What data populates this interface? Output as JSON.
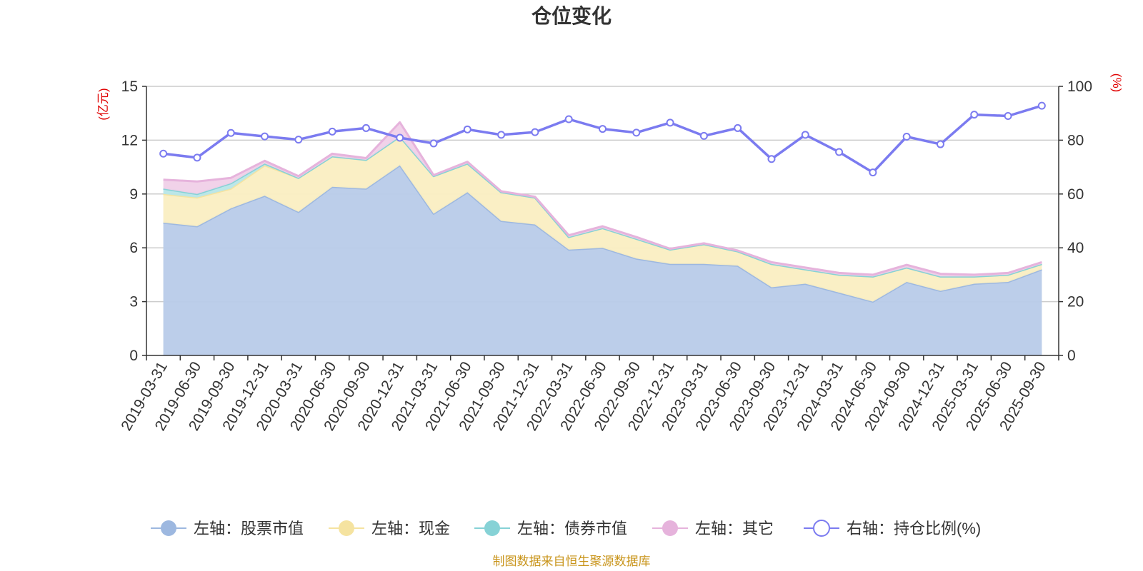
{
  "colors": {
    "stock": "#9db8e0",
    "stock_fill": "#b8cbe9",
    "cash": "#f5e3a0",
    "cash_fill": "#faeec2",
    "bond": "#86d2d6",
    "bond_fill": "#b8e6e8",
    "other": "#e6b3dc",
    "other_fill": "#f0d0e8",
    "ratio": "#7b7bf0",
    "unit": "#e00000",
    "source": "#c9951c",
    "grid": "#cccccc"
  },
  "chart_data": {
    "type": "area",
    "title": "仓位变化",
    "left_unit": "(亿元)",
    "right_unit": "(%)",
    "categories": [
      "2019-03-31",
      "2019-06-30",
      "2019-09-30",
      "2019-12-31",
      "2020-03-31",
      "2020-06-30",
      "2020-09-30",
      "2020-12-31",
      "2021-03-31",
      "2021-06-30",
      "2021-09-30",
      "2021-12-31",
      "2022-03-31",
      "2022-06-30",
      "2022-09-30",
      "2022-12-31",
      "2023-03-31",
      "2023-06-30",
      "2023-09-30",
      "2023-12-31",
      "2024-03-31",
      "2024-06-30",
      "2024-09-30",
      "2024-12-31",
      "2025-03-31",
      "2025-06-30",
      "2025-09-30"
    ],
    "left_axis": {
      "min": 0,
      "max": 15,
      "ticks": [
        "0",
        "3",
        "6",
        "9",
        "12",
        "15"
      ]
    },
    "right_axis": {
      "min": 0,
      "max": 100,
      "ticks": [
        "0",
        "20",
        "40",
        "60",
        "80",
        "100"
      ]
    },
    "series": [
      {
        "name": "左轴：股票市值",
        "key": "stock",
        "axis": "left",
        "stack": true,
        "values": [
          7.4,
          7.2,
          8.2,
          8.9,
          8.0,
          9.4,
          9.3,
          10.6,
          7.9,
          9.1,
          7.5,
          7.3,
          5.9,
          6.0,
          5.4,
          5.1,
          5.1,
          5.0,
          3.8,
          4.0,
          3.5,
          3.0,
          4.1,
          3.6,
          4.0,
          4.1,
          4.8
        ]
      },
      {
        "name": "左轴：现金",
        "key": "cash",
        "axis": "left",
        "stack": true,
        "values": [
          1.6,
          1.6,
          1.1,
          1.7,
          1.9,
          1.7,
          1.6,
          1.6,
          2.1,
          1.6,
          1.6,
          1.5,
          0.7,
          1.1,
          1.1,
          0.8,
          1.1,
          0.8,
          1.3,
          0.8,
          1.0,
          1.4,
          0.8,
          0.8,
          0.4,
          0.4,
          0.3
        ]
      },
      {
        "name": "左轴：债券市值",
        "key": "bond",
        "axis": "left",
        "stack": true,
        "values": [
          0.3,
          0.2,
          0.3,
          0.1,
          0,
          0,
          0,
          0,
          0,
          0,
          0,
          0,
          0,
          0,
          0,
          0,
          0,
          0,
          0,
          0,
          0,
          0,
          0,
          0,
          0,
          0,
          0
        ]
      },
      {
        "name": "左轴：其它",
        "key": "other",
        "axis": "left",
        "stack": true,
        "values": [
          0.5,
          0.7,
          0.3,
          0.15,
          0.1,
          0.15,
          0.1,
          0.8,
          0.05,
          0.1,
          0.05,
          0.05,
          0.1,
          0.1,
          0.1,
          0.05,
          0.05,
          0.05,
          0.1,
          0.1,
          0.1,
          0.1,
          0.15,
          0.15,
          0.1,
          0.1,
          0.1
        ]
      },
      {
        "name": "右轴：持仓比例(%)",
        "key": "ratio",
        "axis": "right",
        "stack": false,
        "values": [
          75,
          73.5,
          82.7,
          81.4,
          80.2,
          83.2,
          84.5,
          80.9,
          78.8,
          84,
          82,
          83,
          87.8,
          84.2,
          82.8,
          86.5,
          81.6,
          84.5,
          73,
          82,
          75.6,
          68,
          81.3,
          78.5,
          89.5,
          89,
          92.8
        ]
      }
    ]
  },
  "legend": [
    "左轴：股票市值",
    "左轴：现金",
    "左轴：债券市值",
    "左轴：其它",
    "右轴：持仓比例(%)"
  ],
  "source_text": "制图数据来自恒生聚源数据库"
}
